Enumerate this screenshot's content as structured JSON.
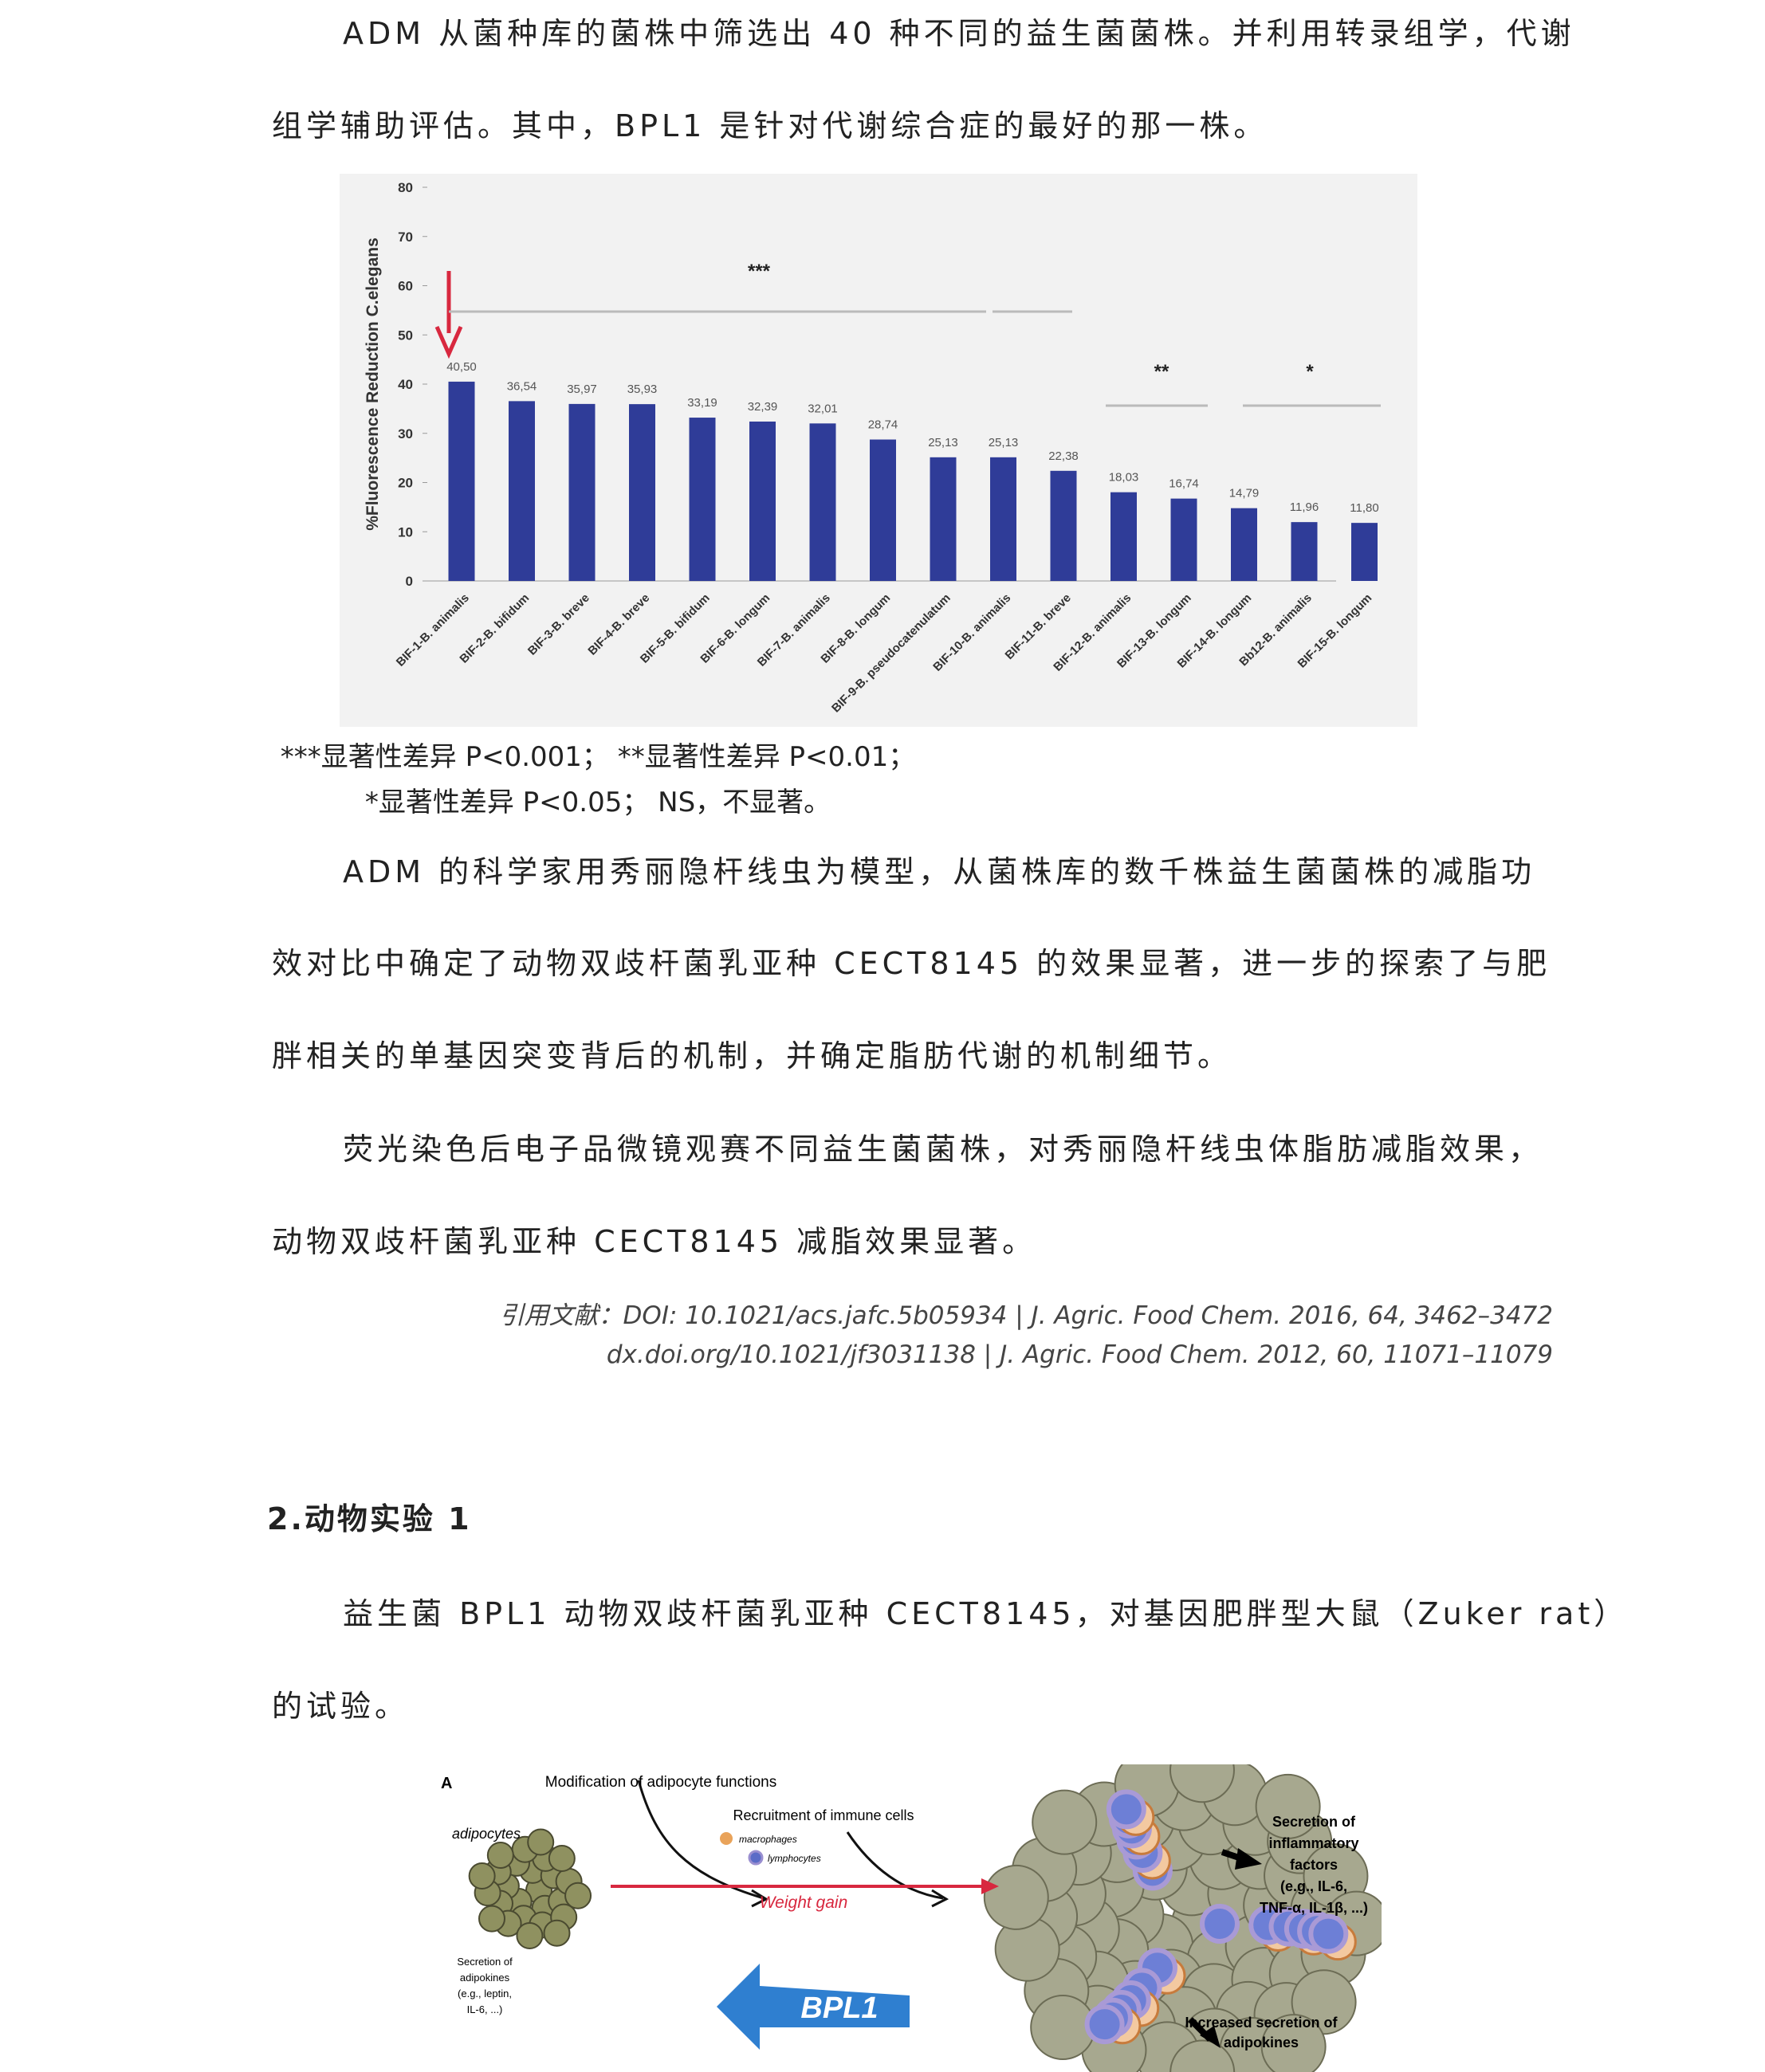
{
  "paragraphs": [
    {
      "lines": [
        "ADM 从菌种库的菌株中筛选出 40 种不同的益生菌菌株。并利用转录组学，代谢",
        "组学辅助评估。其中，BPL1 是针对代谢综合症的最好的那一株。"
      ]
    },
    {
      "lines": [
        "ADM 的科学家用秀丽隐杆线虫为模型，从菌株库的数千株益生菌菌株的减脂功",
        "效对比中确定了动物双歧杆菌乳亚种 CECT8145  的效果显著，进一步的探索了与肥",
        "胖相关的单基因突变背后的机制，并确定脂肪代谢的机制细节。"
      ]
    },
    {
      "lines": [
        "荧光染色后电子品微镜观赛不同益生菌菌株，对秀丽隐杆线虫体脂肪减脂效果，",
        "动物双歧杆菌乳亚种 CECT8145 减脂效果显著。"
      ]
    },
    {
      "lines": [
        "益生菌 BPL1 动物双歧杆菌乳亚种 CECT8145，对基因肥胖型大鼠（Zuker rat）",
        "的试验。"
      ]
    }
  ],
  "chart_data": {
    "type": "bar",
    "y_label": "%Fluorescence Reduction C.elegans",
    "categories": [
      "BIF-1-B. animalis",
      "BIF-2-B. bifidum",
      "BIF-3-B. breve",
      "BIF-4-B. breve",
      "BIF-5-B. bifidum",
      "BIF-6-B. longum",
      "BIF-7-B. animalis",
      "BIF-8-B. longum",
      "BIF-9-B. pseudocatenulatum",
      "BIF-10-B. animalis",
      "BIF-11-B. breve",
      "BIF-12-B. animalis",
      "BIF-13-B. longum",
      "BIF-14-B. longum",
      "Bb12-B. animalis",
      "BIF-15-B. longum"
    ],
    "values": [
      40.5,
      36.54,
      35.97,
      35.93,
      33.19,
      32.39,
      32.01,
      28.74,
      25.13,
      25.13,
      22.38,
      18.03,
      16.74,
      14.79,
      11.96,
      11.8
    ],
    "value_labels": [
      "40,50",
      "36,54",
      "35,97",
      "35,93",
      "33,19",
      "32,39",
      "32,01",
      "28,74",
      "25,13",
      "25,13",
      "22,38",
      "18,03",
      "16,74",
      "14,79",
      "11,96",
      "11,80"
    ],
    "color": "#2f3c98",
    "ylim": [
      0,
      80
    ],
    "yticks": [
      0,
      10,
      20,
      30,
      40,
      50,
      60,
      70,
      80
    ],
    "annotations": [
      "***",
      "**",
      "*"
    ]
  },
  "caption": [
    "***显著性差异 P<0.001； **显著性差异 P<0.01；",
    "*显著性差异 P<0.05； NS，不显著。"
  ],
  "citations": [
    "引用文献：DOI: 10.1021/acs.jafc.5b05934 | J. Agric. Food Chem. 2016, 64, 3462–3472",
    "dx.doi.org/10.1021/jf3031138 | J. Agric. Food Chem. 2012, 60, 11071–11079"
  ],
  "heading": "2.动物实验 1",
  "diagram": {
    "panel": "A",
    "top_label": "Modification of adipocyte functions",
    "adipocytes": "adipocytes",
    "recruitment": "Recruitment of immune cells",
    "macrophages": "macrophages",
    "lymphocytes": "lymphocytes",
    "weight_gain": "Weight gain",
    "secretion_adipokines": [
      "Secretion of",
      "adipokines",
      "(e.g., leptin,",
      "IL-6, ...)"
    ],
    "bpl1": "BPL1",
    "inflammatory": [
      "Secretion of",
      "inflammatory",
      "factors",
      "(e.g., IL-6,",
      "TNF-α, IL-1β, ...)"
    ],
    "increased": [
      "Increased secretion of",
      "adipokines"
    ]
  }
}
